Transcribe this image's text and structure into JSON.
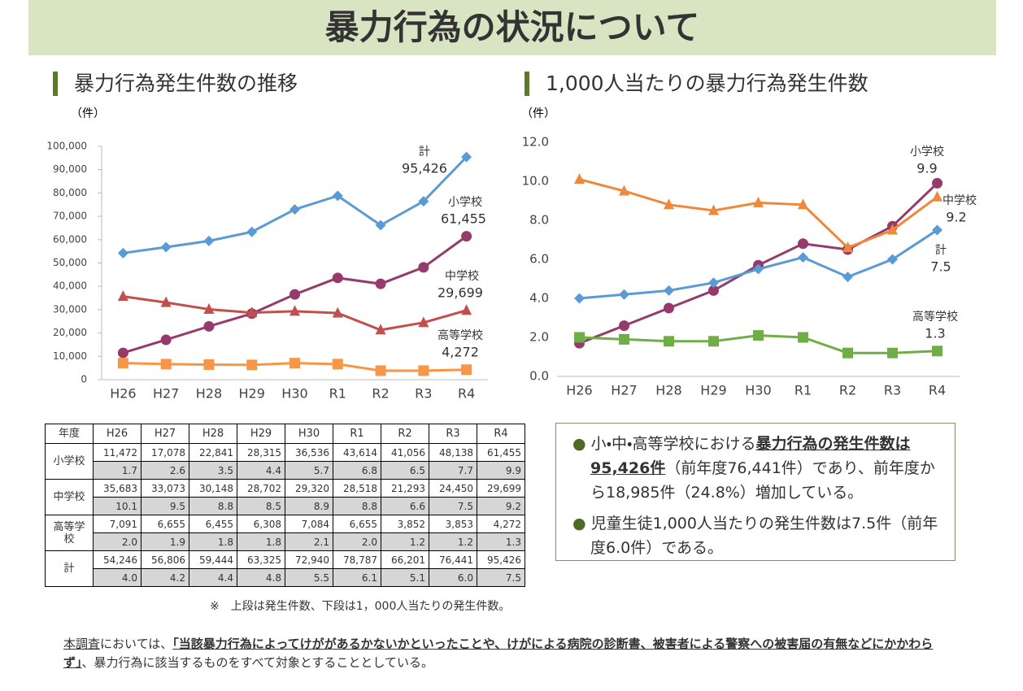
{
  "title": "暴力行為の状況について",
  "chart_data": [
    {
      "type": "line",
      "title": "暴力行為発生件数の推移",
      "y_unit": "（件）",
      "categories": [
        "H26",
        "H27",
        "H28",
        "H29",
        "H30",
        "R1",
        "R2",
        "R3",
        "R4"
      ],
      "ylim": [
        0,
        100000
      ],
      "yticks": [
        0,
        {
          "value": 10000,
          "label": "10,000"
        },
        {
          "value": 20000,
          "label": "20,000"
        },
        {
          "value": 30000,
          "label": "30,000"
        },
        {
          "value": 40000,
          "label": "40,000"
        },
        {
          "value": 50000,
          "label": "50,000"
        },
        {
          "value": 60000,
          "label": "60,000"
        },
        {
          "value": 70000,
          "label": "70,000"
        },
        {
          "value": 80000,
          "label": "80,000"
        },
        {
          "value": 90000,
          "label": "90,000"
        },
        {
          "value": 100000,
          "label": "100,000"
        }
      ],
      "series": [
        {
          "name": "計",
          "color": "#5b9bd5",
          "marker": "diamond",
          "values": [
            54246,
            56806,
            59444,
            63325,
            72940,
            78787,
            66201,
            76441,
            95426
          ],
          "value_labels": [
            null,
            null,
            null,
            null,
            null,
            null,
            null,
            null,
            "95,426"
          ]
        },
        {
          "name": "小学校",
          "color": "#953a6b",
          "marker": "circle",
          "values": [
            11472,
            17078,
            22841,
            28315,
            36536,
            43614,
            41056,
            48138,
            61455
          ],
          "value_labels": [
            null,
            null,
            null,
            null,
            null,
            null,
            null,
            null,
            "61,455"
          ]
        },
        {
          "name": "中学校",
          "color": "#c0504d",
          "marker": "triangle",
          "values": [
            35683,
            33073,
            30148,
            28702,
            29320,
            28518,
            21293,
            24450,
            29699
          ],
          "value_labels": [
            null,
            null,
            null,
            null,
            null,
            null,
            null,
            null,
            "29,699"
          ]
        },
        {
          "name": "高等学校",
          "color": "#f79646",
          "marker": "square",
          "values": [
            7091,
            6655,
            6455,
            6308,
            7084,
            6655,
            3852,
            3853,
            4272
          ],
          "value_labels": [
            null,
            null,
            null,
            null,
            null,
            null,
            null,
            null,
            "4,272"
          ]
        }
      ]
    },
    {
      "type": "line",
      "title": "1,000人当たりの暴力行為発生件数",
      "y_unit": "（件）",
      "categories": [
        "H26",
        "H27",
        "H28",
        "H29",
        "H30",
        "R1",
        "R2",
        "R3",
        "R4"
      ],
      "ylim": [
        0,
        12
      ],
      "yticks": [
        {
          "value": 0,
          "label": "0.0"
        },
        {
          "value": 2,
          "label": "2.0"
        },
        {
          "value": 4,
          "label": "4.0"
        },
        {
          "value": 6,
          "label": "6.0"
        },
        {
          "value": 8,
          "label": "8.0"
        },
        {
          "value": 10,
          "label": "10.0"
        },
        {
          "value": 12,
          "label": "12.0"
        }
      ],
      "series": [
        {
          "name": "小学校",
          "color": "#953a6b",
          "marker": "circle",
          "values": [
            1.7,
            2.6,
            3.5,
            4.4,
            5.7,
            6.8,
            6.5,
            7.7,
            9.9
          ]
        },
        {
          "name": "中学校",
          "color": "#f0883a",
          "marker": "triangle",
          "values": [
            10.1,
            9.5,
            8.8,
            8.5,
            8.9,
            8.8,
            6.6,
            7.5,
            9.2
          ]
        },
        {
          "name": "計",
          "color": "#5b9bd5",
          "marker": "diamond",
          "values": [
            4.0,
            4.2,
            4.4,
            4.8,
            5.5,
            6.1,
            5.1,
            6.0,
            7.5
          ]
        },
        {
          "name": "高等学校",
          "color": "#70ad47",
          "marker": "square",
          "values": [
            2.0,
            1.9,
            1.8,
            1.8,
            2.1,
            2.0,
            1.2,
            1.2,
            1.3
          ]
        }
      ]
    }
  ],
  "table": {
    "header": [
      "年度",
      "H26",
      "H27",
      "H28",
      "H29",
      "H30",
      "R1",
      "R2",
      "R3",
      "R4"
    ],
    "groups": [
      {
        "label": "小学校",
        "counts": [
          "11,472",
          "17,078",
          "22,841",
          "28,315",
          "36,536",
          "43,614",
          "41,056",
          "48,138",
          "61,455"
        ],
        "rates": [
          "1.7",
          "2.6",
          "3.5",
          "4.4",
          "5.7",
          "6.8",
          "6.5",
          "7.7",
          "9.9"
        ]
      },
      {
        "label": "中学校",
        "counts": [
          "35,683",
          "33,073",
          "30,148",
          "28,702",
          "29,320",
          "28,518",
          "21,293",
          "24,450",
          "29,699"
        ],
        "rates": [
          "10.1",
          "9.5",
          "8.8",
          "8.5",
          "8.9",
          "8.8",
          "6.6",
          "7.5",
          "9.2"
        ]
      },
      {
        "label": "高等学校",
        "counts": [
          "7,091",
          "6,655",
          "6,455",
          "6,308",
          "7,084",
          "6,655",
          "3,852",
          "3,853",
          "4,272"
        ],
        "rates": [
          "2.0",
          "1.9",
          "1.8",
          "1.8",
          "2.1",
          "2.0",
          "1.2",
          "1.2",
          "1.3"
        ]
      },
      {
        "label": "計",
        "counts": [
          "54,246",
          "56,806",
          "59,444",
          "63,325",
          "72,940",
          "78,787",
          "66,201",
          "76,441",
          "95,426"
        ],
        "rates": [
          "4.0",
          "4.2",
          "4.4",
          "4.8",
          "5.5",
          "6.1",
          "5.1",
          "6.0",
          "7.5"
        ]
      }
    ],
    "note": "※　上段は発生件数、下段は1，000人当たりの発生件数。"
  },
  "summary": [
    {
      "parts": [
        {
          "text": "小・中・高等学校における"
        },
        {
          "text": "暴力行為の発生件数は95,426件",
          "style": "bold-underline"
        },
        {
          "text": "（前年度76,441件）であり、前年度から18,985件（24.8%）増加している。"
        }
      ]
    },
    {
      "parts": [
        {
          "text": "児童生徒1,000人当たりの発生件数は7.5件（前年度6.0件）である。"
        }
      ]
    }
  ],
  "footer": {
    "parts": [
      {
        "text": "本調査",
        "style": "underline"
      },
      {
        "text": "においては、"
      },
      {
        "text": "「当該暴力行為によってけががあるかないかといったことや、けがによる病院の診断書、被害者による警察への被害届の有無などにかかわらず」",
        "style": "bold-underline"
      },
      {
        "text": "、暴力行為に該当するものをすべて対象とすることとしている。"
      }
    ]
  }
}
